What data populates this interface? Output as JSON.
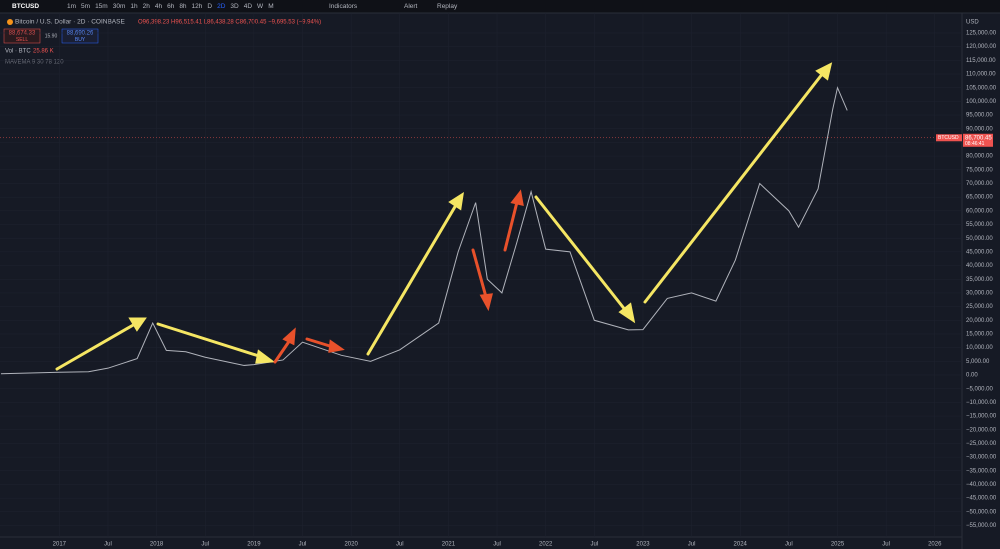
{
  "toolbar": {
    "symbol": "BTCUSD",
    "intervals": [
      "1m",
      "5m",
      "15m",
      "30m",
      "1h",
      "2h",
      "4h",
      "6h",
      "8h",
      "12h",
      "D",
      "2D",
      "3D",
      "4D",
      "W",
      "M"
    ],
    "indicators": "Indicators",
    "alert": "Alert",
    "replay": "Replay"
  },
  "header": {
    "title": "Bitcoin / U.S. Dollar · 2D · COINBASE",
    "ohlc": "O96,398.23 H96,515.41 L86,438.28 C86,700.45 −9,695.53 (−9.94%)",
    "sell_price": "88,674.33",
    "sell": "SELL",
    "spread": "15.90",
    "buy_price": "88,690.26",
    "buy": "BUY",
    "volume_label": "Vol · BTC",
    "volume_value": "25.86 K",
    "ma_label": "MAVEMA 9 30 78 120"
  },
  "chart_data": {
    "type": "line",
    "currency": "USD",
    "color": "#b0b3bb",
    "x": [
      2016.4,
      2017.0,
      2017.3,
      2017.5,
      2017.8,
      2017.96,
      2018.1,
      2018.3,
      2018.5,
      2018.9,
      2019.0,
      2019.3,
      2019.5,
      2019.9,
      2020.2,
      2020.5,
      2020.9,
      2021.1,
      2021.28,
      2021.4,
      2021.55,
      2021.7,
      2021.85,
      2022.0,
      2022.25,
      2022.5,
      2022.85,
      2023.0,
      2023.25,
      2023.5,
      2023.75,
      2023.95,
      2024.2,
      2024.5,
      2024.6,
      2024.8,
      2024.95,
      2025.0,
      2025.1
    ],
    "values": [
      450,
      1000,
      1200,
      2500,
      6000,
      19000,
      9000,
      8500,
      6500,
      3500,
      3800,
      5500,
      12000,
      7200,
      5000,
      9200,
      19000,
      45000,
      63000,
      35000,
      30000,
      48000,
      67000,
      46000,
      45000,
      20000,
      16500,
      16600,
      28000,
      30000,
      27000,
      42000,
      70000,
      60000,
      54000,
      68000,
      97000,
      105000,
      96700
    ],
    "last_price": {
      "symbol": "BTCUSD",
      "price": "86,700.45",
      "value": 86700.45,
      "countdown": "08:46:41"
    },
    "xlim": [
      2016.39,
      2026.28
    ],
    "xticks": [
      {
        "value": 2017,
        "label": "2017"
      },
      {
        "value": 2017.5,
        "label": "Jul"
      },
      {
        "value": 2018,
        "label": "2018"
      },
      {
        "value": 2018.5,
        "label": "Jul"
      },
      {
        "value": 2019,
        "label": "2019"
      },
      {
        "value": 2019.5,
        "label": "Jul"
      },
      {
        "value": 2020,
        "label": "2020"
      },
      {
        "value": 2020.5,
        "label": "Jul"
      },
      {
        "value": 2021,
        "label": "2021"
      },
      {
        "value": 2021.5,
        "label": "Jul"
      },
      {
        "value": 2022,
        "label": "2022"
      },
      {
        "value": 2022.5,
        "label": "Jul"
      },
      {
        "value": 2023,
        "label": "2023"
      },
      {
        "value": 2023.5,
        "label": "Jul"
      },
      {
        "value": 2024,
        "label": "2024"
      },
      {
        "value": 2024.5,
        "label": "Jul"
      },
      {
        "value": 2025,
        "label": "2025"
      },
      {
        "value": 2025.5,
        "label": "Jul"
      },
      {
        "value": 2026,
        "label": "2026"
      }
    ],
    "ylim": [
      -59200,
      132300
    ],
    "yticks": [
      {
        "value": 125000,
        "label": "125,000.00"
      },
      {
        "value": 120000,
        "label": "120,000.00"
      },
      {
        "value": 115000,
        "label": "115,000.00"
      },
      {
        "value": 110000,
        "label": "110,000.00"
      },
      {
        "value": 105000,
        "label": "105,000.00"
      },
      {
        "value": 100000,
        "label": "100,000.00"
      },
      {
        "value": 95000,
        "label": "95,000.00"
      },
      {
        "value": 90000,
        "label": "90,000.00"
      },
      {
        "value": 85000,
        "label": "85,000.00"
      },
      {
        "value": 80000,
        "label": "80,000.00"
      },
      {
        "value": 75000,
        "label": "75,000.00"
      },
      {
        "value": 70000,
        "label": "70,000.00"
      },
      {
        "value": 65000,
        "label": "65,000.00"
      },
      {
        "value": 60000,
        "label": "60,000.00"
      },
      {
        "value": 55000,
        "label": "55,000.00"
      },
      {
        "value": 50000,
        "label": "50,000.00"
      },
      {
        "value": 45000,
        "label": "45,000.00"
      },
      {
        "value": 40000,
        "label": "40,000.00"
      },
      {
        "value": 35000,
        "label": "35,000.00"
      },
      {
        "value": 30000,
        "label": "30,000.00"
      },
      {
        "value": 25000,
        "label": "25,000.00"
      },
      {
        "value": 20000,
        "label": "20,000.00"
      },
      {
        "value": 15000,
        "label": "15,000.00"
      },
      {
        "value": 10000,
        "label": "10,000.00"
      },
      {
        "value": 5000,
        "label": "5,000.00"
      },
      {
        "value": 0,
        "label": "0.00"
      },
      {
        "value": -5000,
        "label": "−5,000.00"
      },
      {
        "value": -10000,
        "label": "−10,000.00"
      },
      {
        "value": -15000,
        "label": "−15,000.00"
      },
      {
        "value": -20000,
        "label": "−20,000.00"
      },
      {
        "value": -25000,
        "label": "−25,000.00"
      },
      {
        "value": -30000,
        "label": "−30,000.00"
      },
      {
        "value": -35000,
        "label": "−35,000.00"
      },
      {
        "value": -40000,
        "label": "−40,000.00"
      },
      {
        "value": -45000,
        "label": "−45,000.00"
      },
      {
        "value": -50000,
        "label": "−50,000.00"
      },
      {
        "value": -55000,
        "label": "−55,000.00"
      }
    ],
    "grid": true
  }
}
